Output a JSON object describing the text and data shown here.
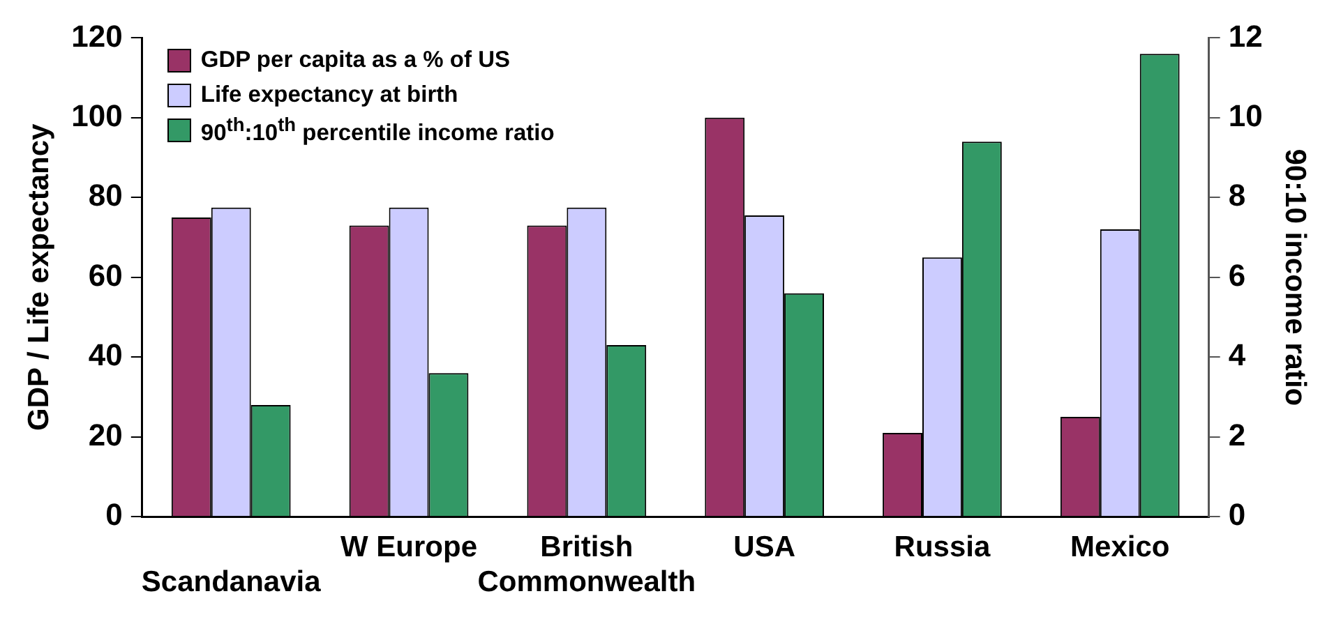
{
  "chart_data": {
    "type": "bar",
    "categories": [
      "Scandanavia",
      "W Europe",
      "British Commonwealth",
      "USA",
      "Russia",
      "Mexico"
    ],
    "series": [
      {
        "name": "GDP per capita as a % of US",
        "color": "#993366",
        "values": [
          75,
          73,
          73,
          100,
          21,
          25
        ]
      },
      {
        "name": "Life expectancy at birth",
        "color": "#ccccff",
        "values": [
          77.5,
          77.5,
          77.5,
          75.5,
          65,
          72
        ]
      },
      {
        "name": "90$^{th}$:10$^{th}$ percentile income ratio",
        "color": "#339966",
        "axis": "y2",
        "values": [
          2.8,
          3.6,
          4.3,
          5.6,
          9.4,
          11.6
        ]
      }
    ],
    "ylabel": "GDP / Life expectancy",
    "y2label": "90:10 income ratio",
    "ylim": [
      0,
      120
    ],
    "yticks": [
      0,
      20,
      40,
      60,
      80,
      100,
      120
    ],
    "y2lim": [
      0,
      12
    ],
    "y2ticks": [
      0,
      2,
      4,
      6,
      8,
      10,
      12
    ],
    "grid": false,
    "legend": "top left"
  }
}
